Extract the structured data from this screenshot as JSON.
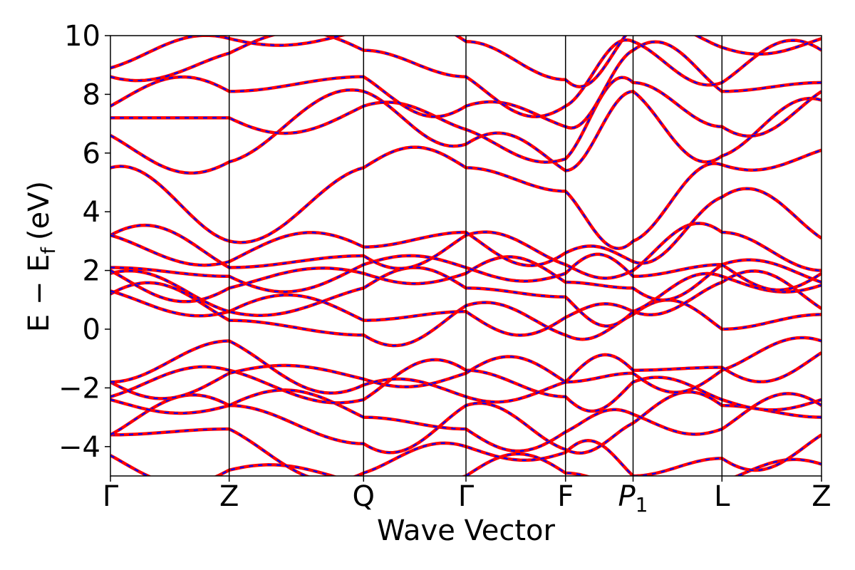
{
  "chart_data": {
    "type": "line",
    "title": "",
    "xlabel": "Wave Vector",
    "ylabel_main": "E − E",
    "ylabel_sub": "f",
    "ylabel_unit": "(eV)",
    "ylim": [
      -5,
      10
    ],
    "yticks": [
      10,
      8,
      6,
      4,
      2,
      0,
      -2,
      -4
    ],
    "ytick_labels": [
      "10",
      "8",
      "6",
      "4",
      "2",
      "0",
      "−2",
      "−4"
    ],
    "kpoints": [
      {
        "label": "Γ",
        "sub": "",
        "x": 0.0
      },
      {
        "label": "Z",
        "sub": "",
        "x": 0.167
      },
      {
        "label": "Q",
        "sub": "",
        "x": 0.356
      },
      {
        "label": "Γ",
        "sub": "",
        "x": 0.5
      },
      {
        "label": "F",
        "sub": "",
        "x": 0.64
      },
      {
        "label": "P",
        "sub": "1",
        "x": 0.735
      },
      {
        "label": "L",
        "sub": "",
        "x": 0.86
      },
      {
        "label": "Z",
        "sub": "",
        "x": 1.0
      }
    ],
    "grid": false,
    "legend": "none",
    "line_colors": {
      "series_a": "#ff0000",
      "series_b": "#0000ff"
    },
    "line_style": "red solid overlaid with blue dashed (identical bands)",
    "bands": [
      {
        "y": [
          -4.3,
          -4.8,
          -5.3,
          -5.0,
          -4.9,
          -5.4,
          -5.2,
          -4.6
        ]
      },
      {
        "y": [
          -3.6,
          -3.4,
          -4.9,
          -4.0,
          -4.2,
          -5.0,
          -4.4,
          -3.6
        ]
      },
      {
        "y": [
          -3.6,
          -2.6,
          -3.9,
          -2.6,
          -4.1,
          -3.2,
          -2.6,
          -3.0
        ]
      },
      {
        "y": [
          -2.4,
          -2.6,
          -3.0,
          -3.4,
          -3.5,
          -2.9,
          -3.4,
          -2.6
        ]
      },
      {
        "y": [
          -2.3,
          -1.4,
          -2.4,
          -1.4,
          -2.3,
          -1.8,
          -2.4,
          -2.4
        ]
      },
      {
        "y": [
          -1.8,
          -1.5,
          -1.7,
          -1.5,
          -1.8,
          -1.5,
          -1.4,
          -0.4
        ]
      },
      {
        "y": [
          -1.8,
          -0.4,
          -1.9,
          -2.3,
          -1.8,
          -1.4,
          -1.3,
          -0.8
        ]
      },
      {
        "y": [
          1.2,
          0.3,
          -0.2,
          0.8,
          -0.2,
          0.5,
          0.0,
          0.5
        ]
      },
      {
        "y": [
          1.3,
          0.6,
          0.3,
          0.6,
          0.4,
          0.6,
          1.6,
          0.7
        ]
      },
      {
        "y": [
          1.9,
          0.6,
          1.4,
          1.4,
          1.1,
          0.6,
          1.8,
          1.5
        ]
      },
      {
        "y": [
          2.0,
          1.4,
          1.9,
          1.9,
          1.6,
          1.4,
          2.2,
          1.6
        ]
      },
      {
        "y": [
          2.1,
          1.8,
          2.2,
          2.1,
          1.9,
          1.8,
          2.2,
          1.9
        ]
      },
      {
        "y": [
          3.2,
          2.1,
          2.5,
          3.2,
          2.2,
          2.0,
          3.3,
          2.0
        ]
      },
      {
        "y": [
          3.2,
          2.3,
          2.8,
          3.3,
          2.6,
          2.3,
          4.5,
          3.1
        ]
      },
      {
        "y": [
          5.5,
          3.0,
          5.5,
          5.5,
          4.7,
          3.0,
          5.6,
          6.1
        ]
      },
      {
        "y": [
          6.6,
          5.7,
          8.1,
          6.3,
          5.4,
          8.1,
          5.9,
          7.8
        ]
      },
      {
        "y": [
          7.2,
          7.2,
          7.6,
          6.8,
          5.8,
          8.4,
          6.9,
          8.1
        ]
      },
      {
        "y": [
          7.6,
          8.1,
          8.6,
          7.6,
          6.9,
          9.5,
          8.1,
          8.4
        ]
      },
      {
        "y": [
          8.6,
          9.4,
          9.5,
          8.6,
          7.6,
          9.8,
          8.4,
          9.5
        ]
      },
      {
        "y": [
          8.9,
          9.9,
          10.2,
          9.8,
          8.5,
          10.3,
          9.6,
          9.9
        ]
      }
    ]
  }
}
